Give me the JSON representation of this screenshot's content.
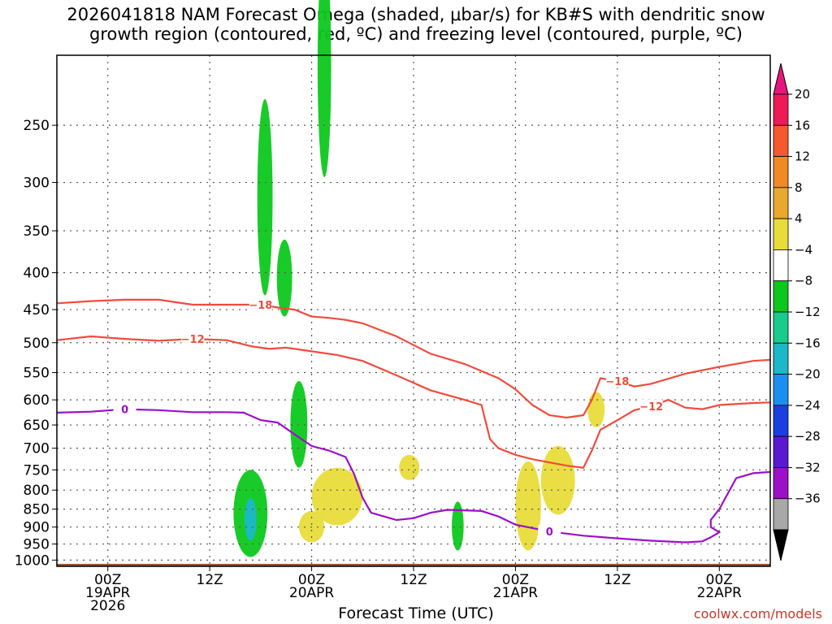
{
  "title": "2026041818 NAM Forecast Omega (shaded, μbar/s) for KB#S with dendritic snow\ngrowth region (contoured, red, ºC) and freezing level (contoured, purple, ºC)",
  "credit": "coolwx.com/models",
  "colors": {
    "red_contour": "#f04b3c",
    "purple_contour": "#9b10c8",
    "ground": "#a0522d",
    "grid": "#555555"
  },
  "chart_data": {
    "type": "heatmap",
    "xlabel": "Forecast Time (UTC)",
    "ylabel": "",
    "x_ticks": [
      {
        "hour": 0,
        "lines": [
          "00Z",
          "19APR",
          "2026"
        ]
      },
      {
        "hour": 12,
        "lines": [
          "12Z"
        ]
      },
      {
        "hour": 24,
        "lines": [
          "00Z",
          "20APR"
        ]
      },
      {
        "hour": 36,
        "lines": [
          "12Z"
        ]
      },
      {
        "hour": 48,
        "lines": [
          "00Z",
          "21APR"
        ]
      },
      {
        "hour": 60,
        "lines": [
          "12Z"
        ]
      },
      {
        "hour": 72,
        "lines": [
          "00Z",
          "22APR"
        ]
      }
    ],
    "xlim_hours": [
      -6,
      78
    ],
    "y_ticks": [
      250,
      300,
      350,
      400,
      450,
      500,
      550,
      600,
      650,
      700,
      750,
      800,
      850,
      900,
      950,
      1000
    ],
    "ylim_hpa": [
      200,
      1020
    ],
    "grid": true,
    "colorbar": {
      "labels": [
        "20",
        "16",
        "12",
        "8",
        "4",
        "−4",
        "−8",
        "−12",
        "−16",
        "−20",
        "−24",
        "−28",
        "−32",
        "−36"
      ],
      "colors": [
        "#ee1a55",
        "#f55a2c",
        "#f08a24",
        "#e9a92e",
        "#e8dc3a",
        "#ffffff",
        "#0dc81c",
        "#19cc8c",
        "#1ab8c8",
        "#1a8ff0",
        "#1a3fe0",
        "#5a18d0",
        "#9b10c8",
        "#a8a8a8"
      ],
      "top_arrow": "#e8167e",
      "bottom_arrow": "#000000"
    },
    "contours": [
      {
        "label": "−18",
        "color": "red",
        "points": [
          [
            -6,
            441
          ],
          [
            -2,
            438
          ],
          [
            2,
            436
          ],
          [
            6,
            436
          ],
          [
            10,
            443
          ],
          [
            14,
            443
          ],
          [
            18,
            443
          ],
          [
            20,
            447
          ],
          [
            22,
            450
          ],
          [
            24,
            460
          ],
          [
            26,
            462
          ],
          [
            28,
            465
          ],
          [
            30,
            470
          ],
          [
            34,
            490
          ],
          [
            38,
            518
          ],
          [
            42,
            535
          ],
          [
            46,
            560
          ],
          [
            48,
            580
          ],
          [
            50,
            610
          ],
          [
            52,
            630
          ],
          [
            54,
            635
          ],
          [
            56,
            630
          ],
          [
            57,
            600
          ],
          [
            58,
            560
          ],
          [
            60,
            565
          ],
          [
            62,
            575
          ],
          [
            64,
            570
          ],
          [
            68,
            552
          ],
          [
            72,
            540
          ],
          [
            76,
            530
          ],
          [
            78,
            528
          ]
        ]
      },
      {
        "label": "−12",
        "color": "red",
        "points": [
          [
            -6,
            496
          ],
          [
            -2,
            490
          ],
          [
            2,
            494
          ],
          [
            6,
            497
          ],
          [
            10,
            494
          ],
          [
            14,
            496
          ],
          [
            17,
            506
          ],
          [
            19,
            510
          ],
          [
            21,
            508
          ],
          [
            24,
            514
          ],
          [
            27,
            520
          ],
          [
            30,
            530
          ],
          [
            34,
            555
          ],
          [
            38,
            582
          ],
          [
            42,
            600
          ],
          [
            44,
            610
          ],
          [
            45,
            680
          ],
          [
            46,
            700
          ],
          [
            48,
            715
          ],
          [
            50,
            725
          ],
          [
            54,
            740
          ],
          [
            56,
            745
          ],
          [
            57,
            705
          ],
          [
            58,
            660
          ],
          [
            60,
            640
          ],
          [
            62,
            620
          ],
          [
            64,
            612
          ],
          [
            66,
            600
          ],
          [
            68,
            615
          ],
          [
            70,
            618
          ],
          [
            72,
            610
          ],
          [
            76,
            606
          ],
          [
            78,
            605
          ]
        ]
      },
      {
        "label": "0",
        "color": "purple",
        "points": [
          [
            -6,
            625
          ],
          [
            -2,
            623
          ],
          [
            2,
            618
          ],
          [
            6,
            620
          ],
          [
            10,
            624
          ],
          [
            14,
            624
          ],
          [
            16,
            625
          ],
          [
            18,
            640
          ],
          [
            20,
            645
          ],
          [
            22,
            670
          ],
          [
            24,
            695
          ],
          [
            26,
            705
          ],
          [
            28,
            720
          ],
          [
            29,
            760
          ],
          [
            30,
            820
          ],
          [
            31,
            860
          ],
          [
            34,
            880
          ],
          [
            36,
            875
          ],
          [
            38,
            860
          ],
          [
            40,
            852
          ],
          [
            44,
            855
          ],
          [
            46,
            870
          ],
          [
            48,
            893
          ],
          [
            52,
            913
          ],
          [
            56,
            925
          ],
          [
            60,
            933
          ],
          [
            64,
            940
          ],
          [
            68,
            945
          ],
          [
            70,
            942
          ],
          [
            71,
            930
          ],
          [
            72,
            915
          ],
          [
            71,
            900
          ],
          [
            71,
            880
          ],
          [
            72,
            850
          ],
          [
            74,
            770
          ],
          [
            76,
            758
          ],
          [
            78,
            755
          ]
        ]
      }
    ],
    "omega_regions": [
      {
        "value": -6,
        "center": [
          18.5,
          330
        ],
        "half": [
          0.9,
          100
        ]
      },
      {
        "value": -6,
        "center": [
          25.5,
          220
        ],
        "half": [
          0.8,
          75
        ]
      },
      {
        "value": -6,
        "center": [
          20.8,
          410
        ],
        "half": [
          0.9,
          50
        ]
      },
      {
        "value": -6,
        "center": [
          16.8,
          870
        ],
        "half": [
          2.0,
          120
        ]
      },
      {
        "value": -6,
        "center": [
          22.5,
          655
        ],
        "half": [
          1.0,
          90
        ]
      },
      {
        "value": -6,
        "center": [
          41.2,
          900
        ],
        "half": [
          0.7,
          70
        ]
      },
      {
        "value": -14,
        "center": [
          16.8,
          880
        ],
        "half": [
          0.7,
          60
        ]
      },
      {
        "value": 6,
        "center": [
          27.0,
          820
        ],
        "half": [
          3.0,
          75
        ]
      },
      {
        "value": 6,
        "center": [
          35.5,
          745
        ],
        "half": [
          1.2,
          30
        ]
      },
      {
        "value": 6,
        "center": [
          24.0,
          900
        ],
        "half": [
          1.5,
          45
        ]
      },
      {
        "value": 6,
        "center": [
          49.5,
          850
        ],
        "half": [
          1.5,
          120
        ]
      },
      {
        "value": 6,
        "center": [
          53.0,
          780
        ],
        "half": [
          2.0,
          85
        ]
      },
      {
        "value": 6,
        "center": [
          57.5,
          620
        ],
        "half": [
          1.0,
          35
        ]
      }
    ]
  }
}
